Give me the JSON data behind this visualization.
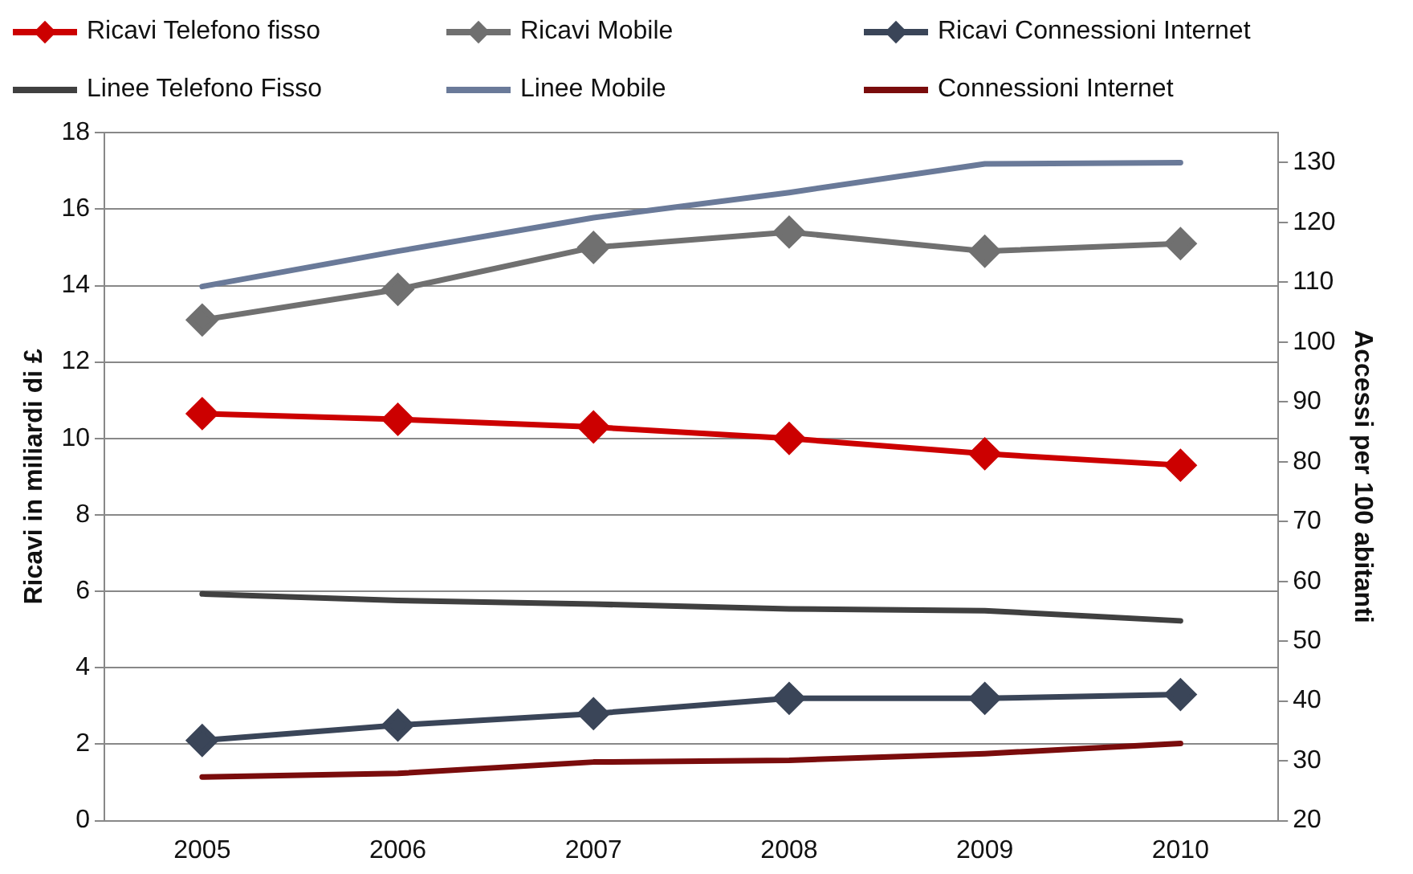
{
  "chart_data": {
    "type": "line",
    "categories": [
      "2005",
      "2006",
      "2007",
      "2008",
      "2009",
      "2010"
    ],
    "ylabel": "Ricavi in miliardi di £",
    "y2label": "Accessi per 100 abitanti",
    "ylim": [
      0,
      18
    ],
    "yticks": [
      0,
      2,
      4,
      6,
      8,
      10,
      12,
      14,
      16,
      18
    ],
    "y2lim": [
      20,
      135
    ],
    "y2ticks": [
      20,
      30,
      40,
      50,
      60,
      70,
      80,
      90,
      100,
      110,
      120,
      130
    ],
    "grid": "y",
    "legend": "top",
    "marker": "diamond",
    "series": [
      {
        "name": "Ricavi Telefono fisso",
        "color": "#cc0000",
        "values": [
          10.65,
          10.5,
          10.3,
          10.0,
          9.6,
          9.3
        ]
      },
      {
        "name": "Ricavi Mobile",
        "color": "#707070",
        "values": [
          13.1,
          13.9,
          15.0,
          15.4,
          14.9,
          15.1
        ]
      },
      {
        "name": "Ricavi Connessioni Internet",
        "color": "#3a4558",
        "values": [
          2.1,
          2.5,
          2.8,
          3.2,
          3.2,
          3.3
        ]
      },
      {
        "name": "Linee Telefono Fisso",
        "color": "#404040",
        "marker": "none",
        "axis": "y2",
        "values": [
          57.9,
          56.8,
          56.2,
          55.4,
          55.1,
          53.4
        ]
      },
      {
        "name": "Linee Mobile",
        "color": "#6a7a99",
        "marker": "none",
        "axis": "y2",
        "values": [
          109.3,
          115.2,
          120.8,
          125,
          129.8,
          130
        ]
      },
      {
        "name": "Connessioni Internet",
        "color": "#7a0c0c",
        "marker": "none",
        "axis": "y2",
        "values": [
          27.3,
          27.9,
          29.8,
          30.1,
          31.2,
          32.9
        ]
      }
    ]
  }
}
